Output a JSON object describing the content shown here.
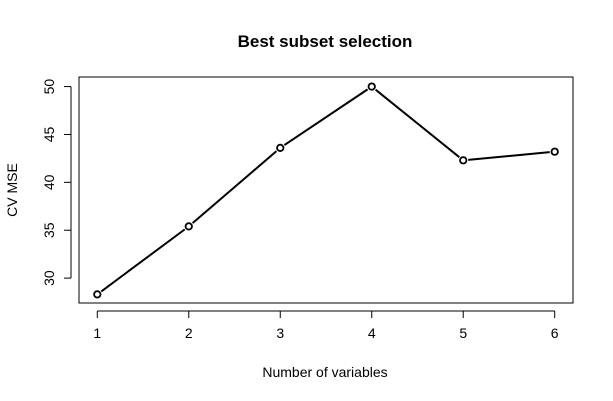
{
  "chart_data": {
    "type": "line",
    "title": "Best subset selection",
    "xlabel": "Number of variables",
    "ylabel": "CV MSE",
    "x": [
      1,
      2,
      3,
      4,
      5,
      6
    ],
    "y": [
      28.3,
      35.4,
      43.6,
      50.0,
      42.3,
      43.2
    ],
    "x_ticks": [
      1,
      2,
      3,
      4,
      5,
      6
    ],
    "y_ticks": [
      30,
      35,
      40,
      45,
      50
    ],
    "xlim": [
      0.8,
      6.2
    ],
    "ylim": [
      27.4,
      51.0
    ],
    "grid": false,
    "markers": "open-circle",
    "line_color": "#000000"
  }
}
